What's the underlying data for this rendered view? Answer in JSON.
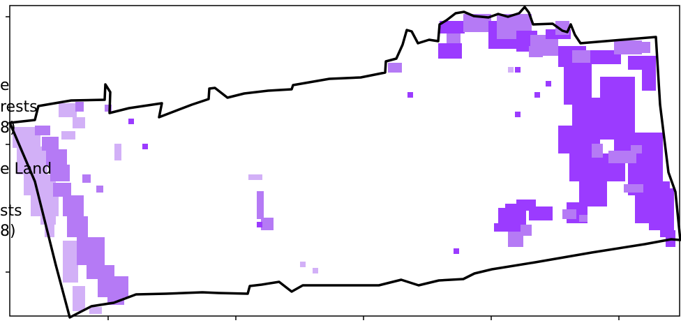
{
  "legend_fragments": [
    {
      "id": "frag1",
      "text": "e"
    },
    {
      "id": "frag2",
      "text": "rests"
    },
    {
      "id": "frag3",
      "text": "8)"
    },
    {
      "id": "frag4",
      "text": "e Land"
    },
    {
      "id": "frag5",
      "text": "sts"
    },
    {
      "id": "frag6",
      "text": "8)"
    }
  ],
  "map": {
    "boundary_color": "#000000",
    "classes": [
      {
        "key": "A",
        "color": "#9b3bff"
      },
      {
        "key": "B",
        "color": "#b57af5"
      },
      {
        "key": "C",
        "color": "#d2b0f7"
      }
    ]
  }
}
